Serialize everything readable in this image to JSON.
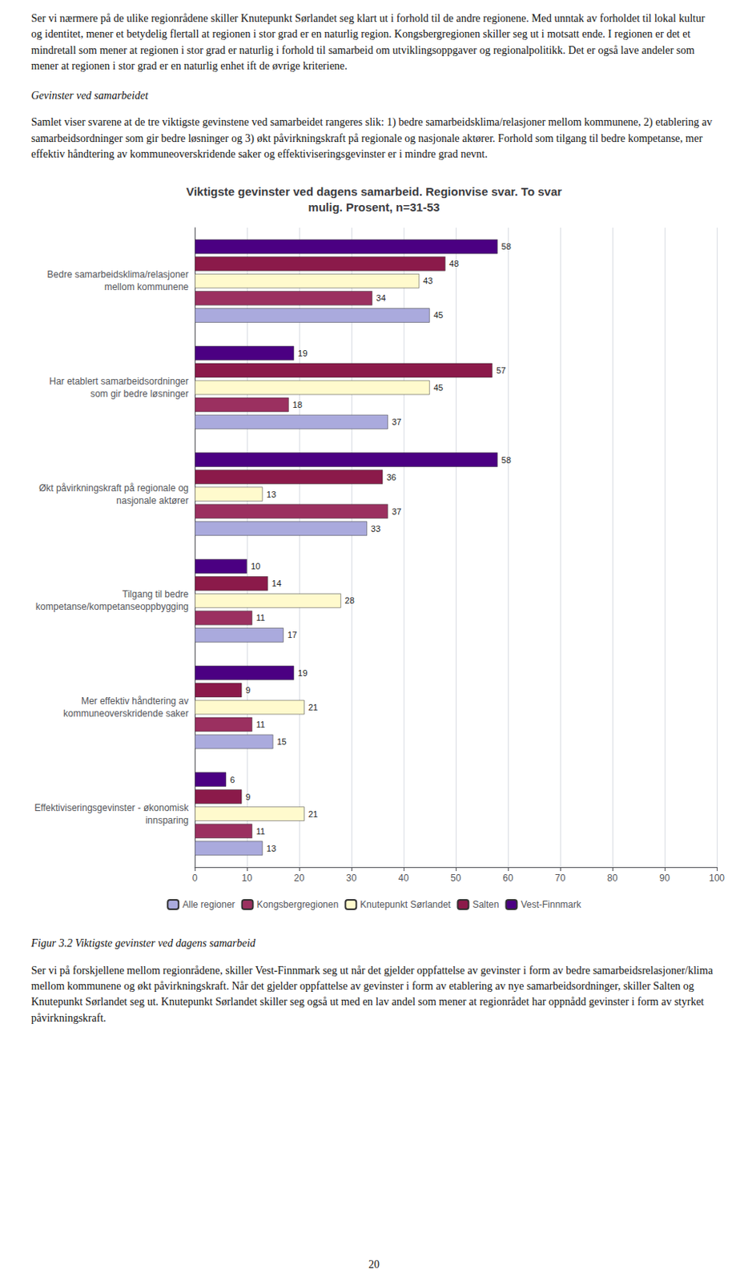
{
  "page_text": {
    "top_para1": "Ser vi nærmere på de ulike regionrådene skiller Knutepunkt Sørlandet seg klart ut i forhold til de andre regionene. Med unntak av forholdet til lokal kultur og identitet, mener et betydelig flertall at regionen i stor grad er en naturlig region. Kongsbergregionen skiller seg ut i motsatt ende. I regionen er det et mindretall som mener at regionen i stor grad er naturlig i forhold til samarbeid om utviklingsoppgaver og regionalpolitikk. Det er også lave andeler som mener at regionen i stor grad er en naturlig enhet ift de øvrige kriteriene.",
    "top_heading": "Gevinster ved samarbeidet",
    "top_para2": "Samlet viser svarene at de tre viktigste gevinstene ved samarbeidet rangeres slik: 1) bedre samarbeidsklima/relasjoner mellom kommunene, 2) etablering av samarbeidsordninger som gir bedre løsninger og 3) økt påvirkningskraft på regionale og nasjonale aktører. Forhold som tilgang til bedre kompetanse, mer effektiv håndtering av kommuneoverskridende saker og effektiviseringsgevinster er i mindre grad nevnt.",
    "figure_caption": "Figur 3.2 Viktigste gevinster ved dagens samarbeid",
    "bottom_para": "Ser vi på forskjellene mellom regionrådene, skiller Vest-Finnmark seg ut når det gjelder oppfattelse av gevinster i form av bedre samarbeidsrelasjoner/klima mellom kommunene og økt påvirkningskraft. Når det gjelder oppfattelse av gevinster i form av etablering av nye samarbeidsordninger, skiller Salten og Knutepunkt Sørlandet seg ut. Knutepunkt Sørlandet skiller seg også ut med en lav andel som mener at regionrådet har oppnådd gevinster i form av styrket påvirkningskraft.",
    "page_number": "20"
  },
  "chart_data": {
    "type": "bar",
    "orientation": "horizontal",
    "title": "Viktigste gevinster ved dagens samarbeid. Regionvise svar. To svar\nmulig. Prosent, n=31-53",
    "categories": [
      "Bedre samarbeidsklima/relasjoner\nmellom kommunene",
      "Har etablert samarbeidsordninger\nsom gir bedre løsninger",
      "Økt påvirkningskraft på regionale og\nnasjonale aktører",
      "Tilgang til bedre\nkompetanse/kompetanseoppbygging",
      "Mer effektiv håndtering av\nkommuneoverskridende saker",
      "Effektiviseringsgevinster - økonomisk\ninnsparing"
    ],
    "series": [
      {
        "name": "Vest-Finnmark",
        "color": "#4B0082",
        "values": [
          58,
          19,
          58,
          10,
          19,
          6
        ]
      },
      {
        "name": "Salten",
        "color": "#8B1A4A",
        "values": [
          48,
          57,
          36,
          14,
          9,
          9
        ]
      },
      {
        "name": "Knutepunkt Sørlandet",
        "color": "#FFFACD",
        "values": [
          43,
          45,
          13,
          28,
          21,
          21
        ]
      },
      {
        "name": "Kongsbergregionen",
        "color": "#9B3060",
        "values": [
          34,
          18,
          37,
          11,
          11,
          11
        ]
      },
      {
        "name": "Alle regioner",
        "color": "#AAAADD",
        "values": [
          45,
          37,
          33,
          17,
          15,
          13
        ]
      }
    ],
    "xlim": [
      0,
      100
    ],
    "xticks": [
      0,
      10,
      20,
      30,
      40,
      50,
      60,
      70,
      80,
      90,
      100
    ],
    "grid": true,
    "legend": "bottom",
    "data_labels": true
  }
}
